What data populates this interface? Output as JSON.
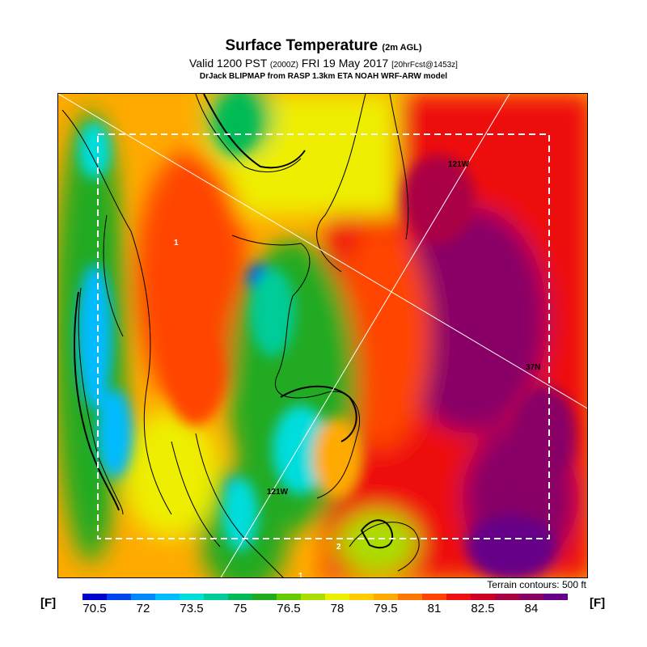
{
  "title": {
    "main": "Surface Temperature",
    "main_suffix": "(2m AGL)",
    "valid_prefix": "Valid 1200 PST",
    "valid_zulu": "(2000Z)",
    "valid_date": "FRI 19 May 2017",
    "forecast_info": "[20hrFcst@1453z]",
    "model_info": "DrJack BLIPMAP from RASP 1.3km ETA NOAH WRF-ARW model"
  },
  "map": {
    "labels": {
      "lon_top": "121W",
      "lon_bottom": "121W",
      "lat_right": "37N",
      "marker_1": "1",
      "marker_2": "2"
    },
    "bottom_lon_fragment": "1",
    "terrain_note": "Terrain contours: 500 ft",
    "palette": [
      "#0000cc",
      "#0044ee",
      "#0088ff",
      "#00bbff",
      "#00dddd",
      "#00cc99",
      "#00bb55",
      "#22aa22",
      "#66cc00",
      "#aadd00",
      "#eeee00",
      "#ffcc00",
      "#ffaa00",
      "#ff7700",
      "#ff4400",
      "#ee1111",
      "#cc0022",
      "#aa0044",
      "#880066",
      "#660088"
    ]
  },
  "colorbar": {
    "unit_left": "[F]",
    "unit_right": "[F]",
    "ticks": [
      "70.5",
      "72",
      "73.5",
      "75",
      "76.5",
      "78",
      "79.5",
      "81",
      "82.5",
      "84"
    ],
    "colors": [
      "#0000cc",
      "#0044ee",
      "#0088ff",
      "#00bbff",
      "#00dddd",
      "#00cc99",
      "#00bb55",
      "#22aa22",
      "#66cc00",
      "#aadd00",
      "#eeee00",
      "#ffcc00",
      "#ffaa00",
      "#ff7700",
      "#ff4400",
      "#ee1111",
      "#cc0022",
      "#aa0044",
      "#880066",
      "#660088"
    ]
  }
}
